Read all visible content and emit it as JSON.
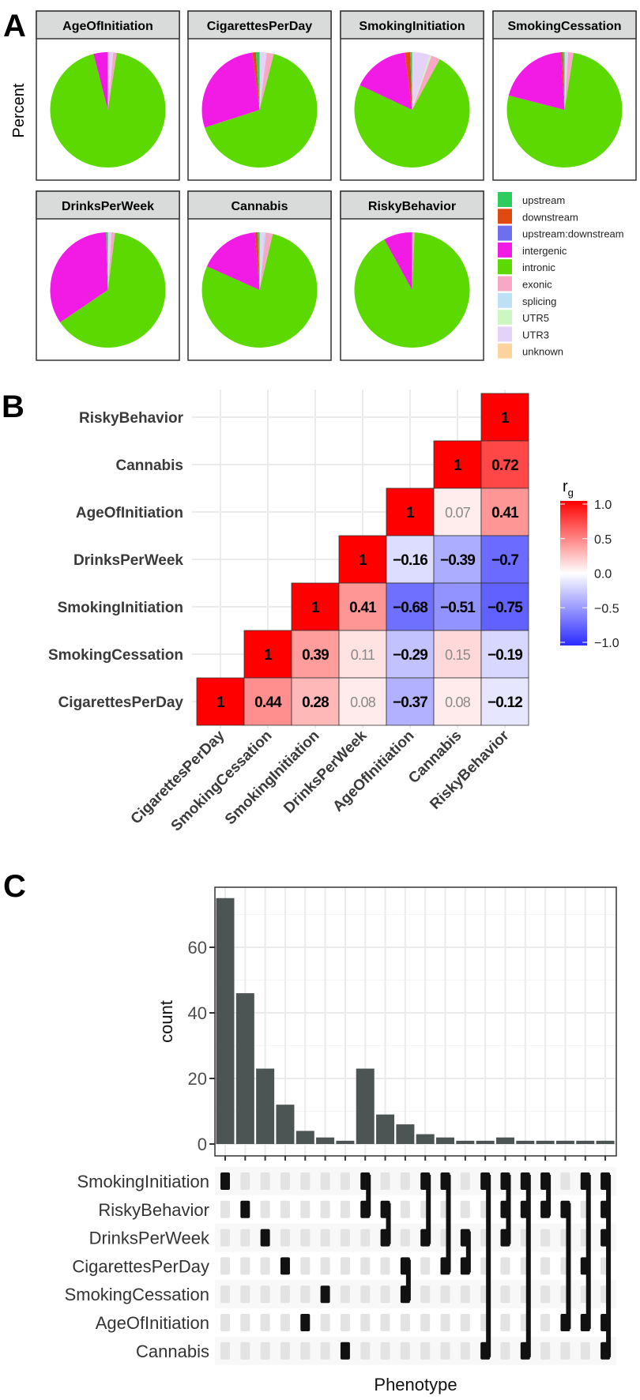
{
  "panels": {
    "a": "A",
    "b": "B",
    "c": "C"
  },
  "chart_data": [
    {
      "type": "pie",
      "panel": "A",
      "ylabel": "Percent",
      "categories": [
        "upstream",
        "downstream",
        "upstream:downstream",
        "intergenic",
        "intronic",
        "exonic",
        "splicing",
        "UTR5",
        "UTR3",
        "unknown"
      ],
      "colors": {
        "upstream": "#2ECC5F",
        "downstream": "#E04A10",
        "upstream:downstream": "#6E6EF0",
        "intergenic": "#F21BE6",
        "intronic": "#5CD900",
        "exonic": "#F7A8C4",
        "splicing": "#BEE0F5",
        "UTR5": "#CCF7C0",
        "UTR3": "#E5D2F7",
        "unknown": "#FDD49E"
      },
      "facets": [
        {
          "title": "AgeOfInitiation",
          "values": {
            "UTR3": 1.5,
            "exonic": 1,
            "intronic": 93.5,
            "intergenic": 4
          }
        },
        {
          "title": "CigarettesPerDay",
          "values": {
            "UTR3": 2,
            "exonic": 2,
            "intronic": 66,
            "intergenic": 28,
            "downstream": 1,
            "upstream": 1
          }
        },
        {
          "title": "SmokingInitiation",
          "values": {
            "UTR3": 5,
            "UTR5": 0.5,
            "exonic": 2.5,
            "intronic": 74,
            "intergenic": 16,
            "downstream": 1.5,
            "upstream": 0.5
          }
        },
        {
          "title": "SmokingCessation",
          "values": {
            "UTR3": 1,
            "exonic": 1.5,
            "intronic": 76.5,
            "intergenic": 20,
            "downstream": 0.5,
            "upstream": 0.5
          }
        },
        {
          "title": "DrinksPerWeek",
          "values": {
            "UTR3": 1,
            "exonic": 1,
            "intronic": 63.5,
            "intergenic": 34,
            "upstream": 0.5
          }
        },
        {
          "title": "Cannabis",
          "values": {
            "UTR3": 1.2,
            "splicing": 0.5,
            "exonic": 2,
            "intronic": 78,
            "intergenic": 17,
            "downstream": 0.8,
            "upstream": 0.5
          }
        },
        {
          "title": "RiskyBehavior",
          "values": {
            "exonic": 0.7,
            "intronic": 91.3,
            "intergenic": 8
          }
        }
      ]
    },
    {
      "type": "heatmap",
      "panel": "B",
      "columns": [
        "CigarettesPerDay",
        "SmokingCessation",
        "SmokingInitiation",
        "DrinksPerWeek",
        "AgeOfInitiation",
        "Cannabis",
        "RiskyBehavior"
      ],
      "rows": [
        "RiskyBehavior",
        "Cannabis",
        "AgeOfInitiation",
        "DrinksPerWeek",
        "SmokingInitiation",
        "SmokingCessation",
        "CigarettesPerDay"
      ],
      "cells": [
        [
          {
            "v": 1,
            "label": "1",
            "sig": true
          }
        ],
        [
          {
            "v": 1,
            "label": "1",
            "sig": true
          },
          {
            "v": 0.72,
            "label": "0.72",
            "sig": true
          }
        ],
        [
          {
            "v": 1,
            "label": "1",
            "sig": true
          },
          {
            "v": 0.07,
            "label": "0.07",
            "sig": false
          },
          {
            "v": 0.41,
            "label": "0.41",
            "sig": true
          }
        ],
        [
          {
            "v": 1,
            "label": "1",
            "sig": true
          },
          {
            "v": -0.16,
            "label": "−0.16",
            "sig": true
          },
          {
            "v": -0.39,
            "label": "−0.39",
            "sig": true
          },
          {
            "v": -0.7,
            "label": "−0.7",
            "sig": true
          }
        ],
        [
          {
            "v": 1,
            "label": "1",
            "sig": true
          },
          {
            "v": 0.41,
            "label": "0.41",
            "sig": true
          },
          {
            "v": -0.68,
            "label": "−0.68",
            "sig": true
          },
          {
            "v": -0.51,
            "label": "−0.51",
            "sig": true
          },
          {
            "v": -0.75,
            "label": "−0.75",
            "sig": true
          }
        ],
        [
          {
            "v": 1,
            "label": "1",
            "sig": true
          },
          {
            "v": 0.39,
            "label": "0.39",
            "sig": true
          },
          {
            "v": 0.11,
            "label": "0.11",
            "sig": false
          },
          {
            "v": -0.29,
            "label": "−0.29",
            "sig": true
          },
          {
            "v": 0.15,
            "label": "0.15",
            "sig": false
          },
          {
            "v": -0.19,
            "label": "−0.19",
            "sig": true
          }
        ],
        [
          {
            "v": 1,
            "label": "1",
            "sig": true
          },
          {
            "v": 0.44,
            "label": "0.44",
            "sig": true
          },
          {
            "v": 0.28,
            "label": "0.28",
            "sig": true
          },
          {
            "v": 0.08,
            "label": "0.08",
            "sig": false
          },
          {
            "v": -0.37,
            "label": "−0.37",
            "sig": true
          },
          {
            "v": 0.08,
            "label": "0.08",
            "sig": false
          },
          {
            "v": -0.12,
            "label": "−0.12",
            "sig": true
          }
        ]
      ],
      "legend": {
        "title": "r",
        "title_sub": "g",
        "ticks": [
          "1.0",
          "0.5",
          "0.0",
          "−0.5",
          "−1.0"
        ],
        "tick_values": [
          1,
          0.5,
          0,
          -0.5,
          -1
        ],
        "low": "#2C2CFF",
        "mid": "#FFFFFF",
        "high": "#FF0000"
      }
    },
    {
      "type": "bar",
      "panel": "C",
      "ylabel": "count",
      "xlabel": "Phenotype",
      "ylim": [
        0,
        78
      ],
      "yticks": [
        0,
        20,
        40,
        60
      ],
      "values": [
        75,
        46,
        23,
        12,
        4,
        2,
        1,
        23,
        9,
        6,
        3,
        2,
        1,
        1,
        2,
        1,
        1,
        1,
        1,
        1
      ],
      "set_names": [
        "SmokingInitiation",
        "RiskyBehavior",
        "DrinksPerWeek",
        "CigarettesPerDay",
        "SmokingCessation",
        "AgeOfInitiation",
        "Cannabis"
      ],
      "sets": [
        [
          "SmokingInitiation"
        ],
        [
          "RiskyBehavior"
        ],
        [
          "DrinksPerWeek"
        ],
        [
          "CigarettesPerDay"
        ],
        [
          "AgeOfInitiation"
        ],
        [
          "SmokingCessation"
        ],
        [
          "Cannabis"
        ],
        [
          "SmokingInitiation",
          "RiskyBehavior"
        ],
        [
          "RiskyBehavior",
          "DrinksPerWeek"
        ],
        [
          "CigarettesPerDay",
          "SmokingCessation"
        ],
        [
          "SmokingInitiation",
          "DrinksPerWeek"
        ],
        [
          "SmokingInitiation",
          "CigarettesPerDay"
        ],
        [
          "DrinksPerWeek",
          "CigarettesPerDay"
        ],
        [
          "SmokingInitiation",
          "Cannabis"
        ],
        [
          "SmokingInitiation",
          "RiskyBehavior",
          "DrinksPerWeek"
        ],
        [
          "SmokingInitiation",
          "RiskyBehavior",
          "Cannabis"
        ],
        [
          "SmokingInitiation",
          "RiskyBehavior"
        ],
        [
          "RiskyBehavior",
          "AgeOfInitiation"
        ],
        [
          "SmokingInitiation",
          "CigarettesPerDay",
          "AgeOfInitiation"
        ],
        [
          "SmokingInitiation",
          "RiskyBehavior",
          "DrinksPerWeek",
          "AgeOfInitiation",
          "Cannabis"
        ]
      ],
      "bar_color": "#4D5454"
    }
  ]
}
